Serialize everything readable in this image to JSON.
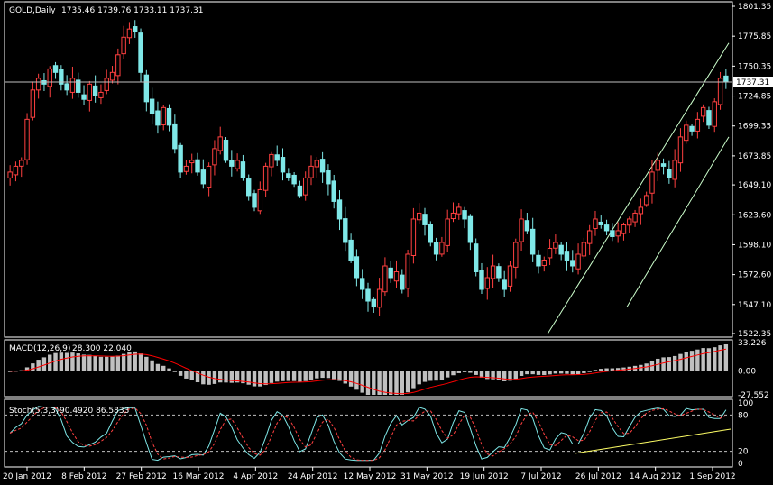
{
  "header": {
    "symbol": "GOLD,Daily",
    "ohlc": "1735.46 1739.76 1733.11 1737.31"
  },
  "macd_header": {
    "name": "MACD(12,26,9)",
    "values": "28.300 22.040"
  },
  "stoch_header": {
    "name": "Stoch(5,3,3)",
    "values": "90.4920 86.5833"
  },
  "colors": {
    "background": "#000000",
    "bull_candle": "#ff4040",
    "bear_candle": "#7fe8e8",
    "axis": "#ffffff",
    "macd_hist": "#c0c0c0",
    "macd_signal": "#ff0000",
    "stoch_main": "#7fe8e8",
    "stoch_signal": "#ff4040",
    "channel": "#ccffcc",
    "trendline": "#ffff66"
  },
  "chart_data": [
    {
      "type": "candlestick",
      "title": "GOLD,Daily",
      "price_axis_labels": [
        "1801.35",
        "1775.85",
        "1750.35",
        "1724.85",
        "1699.35",
        "1673.85",
        "1649.10",
        "1623.60",
        "1598.10",
        "1572.60",
        "1547.10",
        "1522.35"
      ],
      "current_price_label": "1737.31",
      "ylim": [
        1522.35,
        1801.35
      ],
      "x_labels": [
        "20 Jan 2012",
        "8 Feb 2012",
        "27 Feb 2012",
        "16 Mar 2012",
        "4 Apr 2012",
        "24 Apr 2012",
        "12 May 2012",
        "31 May 2012",
        "19 Jun 2012",
        "7 Jul 2012",
        "26 Jul 2012",
        "14 Aug 2012",
        "1 Sep 2012"
      ],
      "close_series": [
        1660,
        1665,
        1670,
        1705,
        1730,
        1740,
        1735,
        1748,
        1745,
        1735,
        1730,
        1740,
        1728,
        1722,
        1735,
        1725,
        1728,
        1740,
        1745,
        1760,
        1775,
        1782,
        1780,
        1745,
        1720,
        1710,
        1700,
        1715,
        1700,
        1680,
        1660,
        1665,
        1670,
        1660,
        1650,
        1665,
        1680,
        1690,
        1670,
        1665,
        1670,
        1655,
        1640,
        1630,
        1645,
        1665,
        1675,
        1670,
        1660,
        1655,
        1650,
        1640,
        1655,
        1665,
        1670,
        1660,
        1650,
        1635,
        1620,
        1600,
        1585,
        1570,
        1560,
        1550,
        1545,
        1560,
        1580,
        1570,
        1575,
        1560,
        1590,
        1620,
        1625,
        1615,
        1600,
        1590,
        1600,
        1620,
        1625,
        1630,
        1620,
        1600,
        1575,
        1560,
        1570,
        1580,
        1570,
        1560,
        1580,
        1600,
        1620,
        1610,
        1590,
        1580,
        1585,
        1595,
        1600,
        1590,
        1585,
        1580,
        1590,
        1600,
        1610,
        1620,
        1615,
        1610,
        1605,
        1610,
        1615,
        1620,
        1625,
        1630,
        1640,
        1660,
        1670,
        1665,
        1655,
        1670,
        1690,
        1700,
        1695,
        1705,
        1715,
        1700,
        1720,
        1740,
        1737
      ],
      "channel": {
        "upper_start": 1522,
        "upper_end": 1770,
        "lower_start": 1545,
        "lower_end": 1690
      }
    },
    {
      "type": "histogram+line",
      "title": "MACD(12,26,9) 28.300 22.040",
      "axis_labels": [
        "33.226",
        "0.00",
        "-27.552"
      ],
      "ylim": [
        -27.552,
        33.226
      ]
    },
    {
      "type": "line",
      "title": "Stoch(5,3,3) 90.4920 86.5833",
      "axis_labels": [
        "100",
        "80",
        "20",
        "0"
      ],
      "ylim": [
        0,
        100
      ]
    }
  ]
}
